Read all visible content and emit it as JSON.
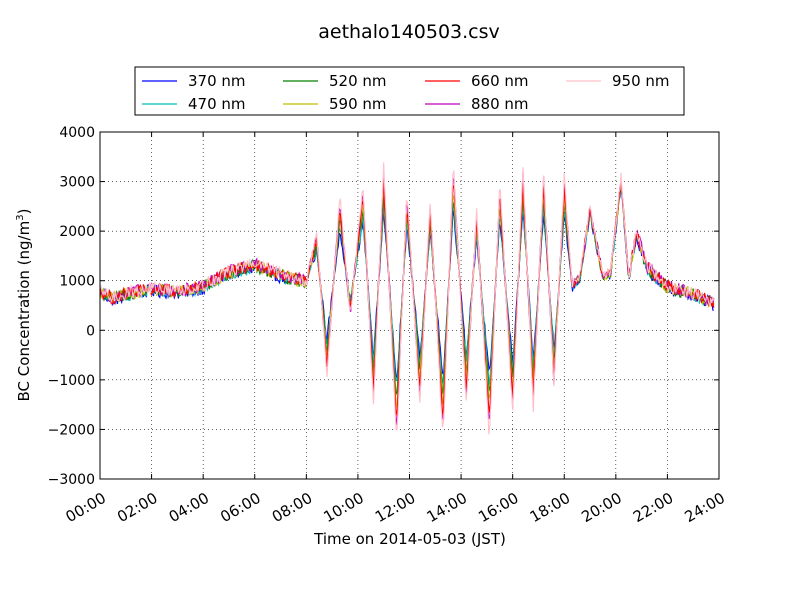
{
  "chart_data": {
    "type": "line",
    "title": "aethalo140503.csv",
    "xlabel": "Time on 2014-05-03 (JST)",
    "ylabel": "BC Concentration (ng/m",
    "ylabel_sup": "3",
    "ylabel_close": ")",
    "xlim": [
      0,
      24
    ],
    "ylim": [
      -3000,
      4000
    ],
    "yticks": [
      -3000,
      -2000,
      -1000,
      0,
      1000,
      2000,
      3000,
      4000
    ],
    "ytick_labels": [
      "−3000",
      "−2000",
      "−1000",
      "0",
      "1000",
      "2000",
      "3000",
      "4000"
    ],
    "xticks": [
      0,
      2,
      4,
      6,
      8,
      10,
      12,
      14,
      16,
      18,
      20,
      22,
      24
    ],
    "xtick_labels": [
      "00:00",
      "02:00",
      "04:00",
      "06:00",
      "08:00",
      "10:00",
      "12:00",
      "14:00",
      "16:00",
      "18:00",
      "20:00",
      "22:00",
      "24:00"
    ],
    "grid": true,
    "legend_position": "top",
    "x_unit": "hours (JST)",
    "series": [
      {
        "name": "370 nm",
        "color": "#0000ff"
      },
      {
        "name": "470 nm",
        "color": "#00bfbf"
      },
      {
        "name": "520 nm",
        "color": "#008000"
      },
      {
        "name": "590 nm",
        "color": "#bfbf00"
      },
      {
        "name": "660 nm",
        "color": "#ff0000"
      },
      {
        "name": "880 nm",
        "color": "#bf00bf"
      },
      {
        "name": "950 nm",
        "color": "#ffc0cb"
      }
    ],
    "profile_x": [
      0,
      0.5,
      1,
      2,
      3,
      4,
      5,
      6,
      7,
      8,
      8.4,
      8.8,
      9.3,
      9.7,
      10.2,
      10.6,
      11.0,
      11.5,
      11.9,
      12.4,
      12.8,
      13.3,
      13.7,
      14.2,
      14.6,
      15.1,
      15.5,
      16.0,
      16.4,
      16.8,
      17.2,
      17.6,
      18.0,
      18.3,
      18.6,
      19.0,
      19.5,
      19.8,
      20.2,
      20.5,
      20.8,
      21.2,
      22,
      23,
      23.8
    ],
    "profile_y": [
      800,
      650,
      750,
      850,
      800,
      900,
      1200,
      1350,
      1150,
      1000,
      1950,
      -900,
      2700,
      300,
      2900,
      -1500,
      3300,
      -2300,
      2800,
      -1500,
      2600,
      -2200,
      3400,
      -1500,
      2400,
      -2200,
      3000,
      -1700,
      3300,
      -1600,
      3200,
      -1200,
      3100,
      900,
      1100,
      2500,
      1100,
      1200,
      3100,
      1100,
      2000,
      1300,
      900,
      750,
      550
    ]
  }
}
